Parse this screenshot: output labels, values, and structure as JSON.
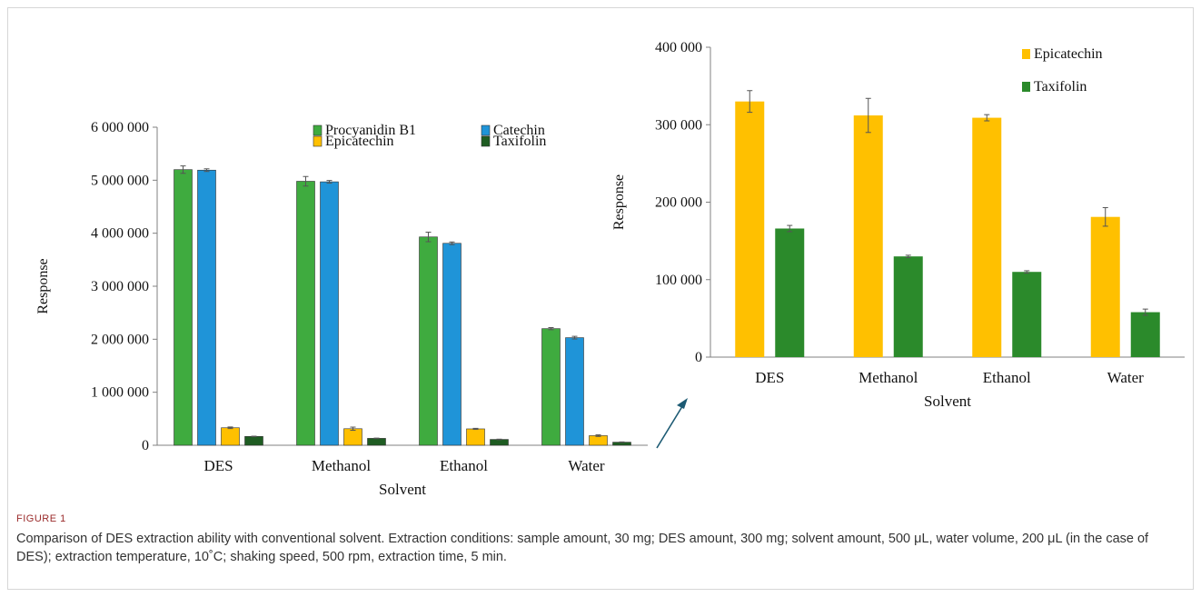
{
  "chart_data": [
    {
      "type": "bar",
      "ylabel": "Response",
      "xlabel": "Solvent",
      "categories": [
        "DES",
        "Methanol",
        "Ethanol",
        "Water"
      ],
      "ylim": [
        0,
        6000000
      ],
      "yticks": [
        0,
        1000000,
        2000000,
        3000000,
        4000000,
        5000000,
        6000000
      ],
      "ytick_labels": [
        "0",
        "1 000 000",
        "2 000 000",
        "3 000 000",
        "4 000 000",
        "5 000 000",
        "6 000 000"
      ],
      "legend": "top-right",
      "grid": false,
      "series": [
        {
          "name": "Procyanidin B1",
          "color": "#3fab3f",
          "values": [
            5200000,
            4980000,
            3930000,
            2200000
          ],
          "errors": [
            70000,
            90000,
            90000,
            20000
          ]
        },
        {
          "name": "Catechin",
          "color": "#1f94d8",
          "values": [
            5190000,
            4970000,
            3810000,
            2030000
          ],
          "errors": [
            25000,
            25000,
            25000,
            25000
          ]
        },
        {
          "name": "Epicatechin",
          "color": "#ffc000",
          "values": [
            330000,
            312000,
            309000,
            181000
          ],
          "errors": [
            15000,
            30000,
            10000,
            15000
          ]
        },
        {
          "name": "Taxifolin",
          "color": "#1e5c22",
          "values": [
            166000,
            130000,
            110000,
            58000
          ],
          "errors": [
            5000,
            5000,
            5000,
            5000
          ]
        }
      ]
    },
    {
      "type": "bar",
      "ylabel": "Response",
      "xlabel": "Solvent",
      "categories": [
        "DES",
        "Methanol",
        "Ethanol",
        "Water"
      ],
      "ylim": [
        0,
        400000
      ],
      "yticks": [
        0,
        100000,
        200000,
        300000,
        400000
      ],
      "ytick_labels": [
        "0",
        "100 000",
        "200 000",
        "300 000",
        "400 000"
      ],
      "legend": "top-right",
      "grid": false,
      "series": [
        {
          "name": "Epicatechin",
          "color": "#ffc000",
          "values": [
            330000,
            312000,
            309000,
            181000
          ],
          "errors": [
            14000,
            22000,
            4000,
            12000
          ]
        },
        {
          "name": "Taxifolin",
          "color": "#2b8a2b",
          "values": [
            166000,
            130000,
            110000,
            58000
          ],
          "errors": [
            4000,
            1500,
            1500,
            4000
          ]
        }
      ]
    }
  ],
  "caption": {
    "label": "FIGURE 1",
    "text": "Comparison of DES extraction ability with conventional solvent. Extraction conditions: sample amount, 30 mg; DES amount, 300 mg; solvent amount, 500 μL, water volume, 200 μL (in the case of DES); extraction temperature, 10˚C; shaking speed, 500 rpm, extraction time, 5 min."
  },
  "colors": {
    "arrow": "#1c5a73",
    "axis": "#808080",
    "error_bar": "#555555"
  }
}
